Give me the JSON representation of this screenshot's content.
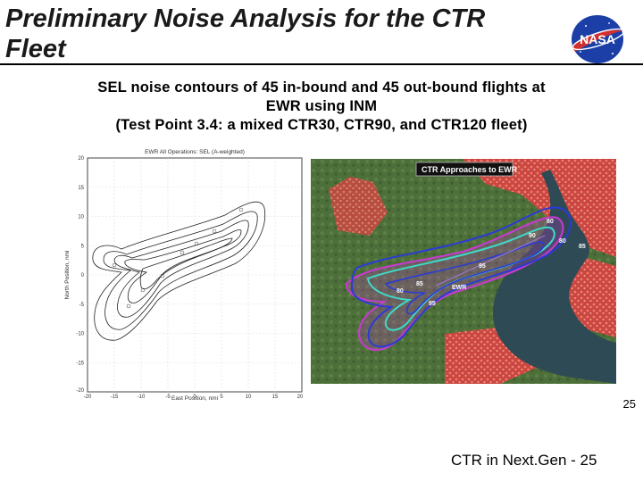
{
  "slide": {
    "title": "Preliminary Noise Analysis for the CTR Fleet",
    "subtitle_lines": [
      "SEL noise contours of 45 in-bound and 45 out-bound flights at",
      "EWR using INM",
      "(Test Point 3.4: a mixed CTR30, CTR90, and CTR120 fleet)"
    ],
    "slide_number": "25",
    "footer": "CTR in Next.Gen - 25"
  },
  "logo": {
    "text": "NASA"
  },
  "left_plot": {
    "title": "EWR All Operations: SEL (A-weighted)",
    "xlabel": "East Position, nmi",
    "ylabel": "North Position, nmi",
    "x_ticks": [
      "-20",
      "-15",
      "-10",
      "-5",
      "0",
      "5",
      "10",
      "15",
      "20"
    ],
    "y_ticks": [
      "20",
      "15",
      "10",
      "5",
      "0",
      "-5",
      "-10",
      "-15",
      "-20"
    ]
  },
  "right_map": {
    "legend_title": "CTR Approaches to EWR",
    "labels": [
      "80",
      "90",
      "80",
      "85",
      "95",
      "85",
      "EWR",
      "80",
      "95"
    ]
  },
  "colors": {
    "contour_blue": "#2b3bd6",
    "contour_cyan": "#3fd9c8",
    "contour_magenta": "#c83bd0",
    "urban_red": "#e5534f",
    "vegetation": "#4d6f3a",
    "water": "#2e4a55"
  }
}
